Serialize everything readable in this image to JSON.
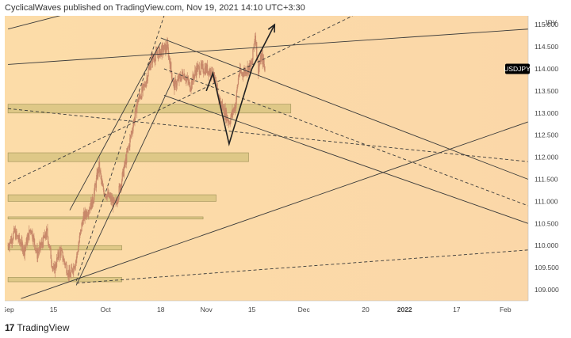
{
  "header": {
    "caption": "CyclicalWaves published on TradingView.com, Nov 19, 2021 14:10 UTC+3:30"
  },
  "footer": {
    "logo_glyph": "17",
    "brand": "TradingView"
  },
  "colors": {
    "background": "#fcd9a6",
    "zone": "#d4c27c",
    "candle": "#c8886a",
    "line": "#3a3a3a",
    "symbol_badge": "#000000"
  },
  "chart_data": {
    "type": "candlestick",
    "symbol": "USDJPY",
    "currency": "JPY",
    "y_ticks": [
      "115.000",
      "114.500",
      "114.000",
      "113.500",
      "113.000",
      "112.500",
      "112.000",
      "111.500",
      "111.000",
      "110.500",
      "110.000",
      "109.500",
      "109.000"
    ],
    "y_tick_values": [
      115.0,
      114.5,
      114.0,
      113.5,
      113.0,
      112.5,
      112.0,
      111.5,
      111.0,
      110.5,
      110.0,
      109.5,
      109.0
    ],
    "ylim": [
      108.75,
      115.2
    ],
    "x_ticks": [
      "Sep",
      "15",
      "Oct",
      "18",
      "Nov",
      "15",
      "Dec",
      "20",
      "2022",
      "17",
      "Feb"
    ],
    "x_tick_dates": [
      "2021-09-01",
      "2021-09-15",
      "2021-10-01",
      "2021-10-18",
      "2021-11-01",
      "2021-11-15",
      "2021-12-01",
      "2021-12-20",
      "2022-01-01",
      "2022-01-17",
      "2022-02-01"
    ],
    "xlim": [
      "2021-08-31",
      "2022-02-08"
    ],
    "last_price": 114.0,
    "price_path": [
      [
        "2021-09-01",
        110.0
      ],
      [
        "2021-09-03",
        110.3
      ],
      [
        "2021-09-06",
        109.9
      ],
      [
        "2021-09-08",
        110.4
      ],
      [
        "2021-09-10",
        109.8
      ],
      [
        "2021-09-13",
        110.3
      ],
      [
        "2021-09-15",
        109.4
      ],
      [
        "2021-09-17",
        109.9
      ],
      [
        "2021-09-20",
        109.3
      ],
      [
        "2021-09-22",
        109.7
      ],
      [
        "2021-09-24",
        110.6
      ],
      [
        "2021-09-27",
        111.0
      ],
      [
        "2021-09-29",
        111.8
      ],
      [
        "2021-09-30",
        111.3
      ],
      [
        "2021-10-04",
        110.9
      ],
      [
        "2021-10-06",
        111.5
      ],
      [
        "2021-10-08",
        112.2
      ],
      [
        "2021-10-11",
        113.3
      ],
      [
        "2021-10-13",
        113.6
      ],
      [
        "2021-10-15",
        114.2
      ],
      [
        "2021-10-18",
        114.4
      ],
      [
        "2021-10-20",
        114.5
      ],
      [
        "2021-10-22",
        113.6
      ],
      [
        "2021-10-25",
        113.9
      ],
      [
        "2021-10-27",
        113.6
      ],
      [
        "2021-10-29",
        114.0
      ],
      [
        "2021-11-01",
        114.0
      ],
      [
        "2021-11-03",
        113.9
      ],
      [
        "2021-11-05",
        113.3
      ],
      [
        "2021-11-08",
        112.8
      ],
      [
        "2021-11-10",
        113.2
      ],
      [
        "2021-11-11",
        113.9
      ],
      [
        "2021-11-12",
        113.9
      ],
      [
        "2021-11-15",
        114.1
      ],
      [
        "2021-11-16",
        114.8
      ],
      [
        "2021-11-17",
        114.0
      ],
      [
        "2021-11-18",
        114.3
      ],
      [
        "2021-11-19",
        114.0
      ]
    ],
    "support_zones": [
      {
        "from": "2021-09-01",
        "to": "2021-11-27",
        "low": 113.0,
        "high": 113.2
      },
      {
        "from": "2021-09-01",
        "to": "2021-11-14",
        "low": 111.9,
        "high": 112.1
      },
      {
        "from": "2021-09-01",
        "to": "2021-11-04",
        "low": 111.0,
        "high": 111.15
      },
      {
        "from": "2021-09-01",
        "to": "2021-10-31",
        "low": 110.6,
        "high": 110.65
      },
      {
        "from": "2021-09-01",
        "to": "2021-10-06",
        "low": 109.9,
        "high": 110.0
      },
      {
        "from": "2021-09-01",
        "to": "2021-10-06",
        "low": 109.18,
        "high": 109.28
      }
    ],
    "trend_lines": [
      {
        "style": "solid",
        "from": [
          "2021-09-20",
          110.8
        ],
        "to": [
          "2021-10-18",
          114.6
        ]
      },
      {
        "style": "solid",
        "from": [
          "2021-09-22",
          109.1
        ],
        "to": [
          "2021-10-22",
          113.8
        ]
      },
      {
        "style": "solid",
        "from": [
          "2021-09-01",
          114.9
        ],
        "to": [
          "2021-09-22",
          115.3
        ]
      },
      {
        "style": "solid",
        "from": [
          "2021-09-01",
          114.1
        ],
        "to": [
          "2022-02-08",
          114.9
        ]
      },
      {
        "style": "solid",
        "from": [
          "2021-10-18",
          114.7
        ],
        "to": [
          "2022-02-08",
          111.5
        ]
      },
      {
        "style": "solid",
        "from": [
          "2021-10-19",
          113.4
        ],
        "to": [
          "2022-02-08",
          110.5
        ]
      },
      {
        "style": "solid",
        "from": [
          "2021-09-05",
          108.8
        ],
        "to": [
          "2022-02-08",
          112.8
        ]
      },
      {
        "style": "dashed",
        "from": [
          "2021-10-19",
          114.0
        ],
        "to": [
          "2022-02-08",
          110.9
        ]
      },
      {
        "style": "dashed",
        "from": [
          "2021-09-01",
          113.1
        ],
        "to": [
          "2022-02-08",
          111.9
        ]
      },
      {
        "style": "dashed",
        "from": [
          "2021-09-01",
          111.4
        ],
        "to": [
          "2021-12-16",
          115.2
        ]
      },
      {
        "style": "dashed",
        "from": [
          "2021-09-22",
          109.2
        ],
        "to": [
          "2021-10-19",
          115.2
        ]
      },
      {
        "style": "dashed",
        "from": [
          "2021-09-22",
          109.15
        ],
        "to": [
          "2022-02-08",
          109.9
        ]
      }
    ],
    "projection_path": [
      [
        "2021-11-01",
        113.5
      ],
      [
        "2021-11-03",
        113.9
      ],
      [
        "2021-11-08",
        112.3
      ],
      [
        "2021-11-15",
        114.0
      ],
      [
        "2021-11-22",
        115.0
      ]
    ]
  }
}
